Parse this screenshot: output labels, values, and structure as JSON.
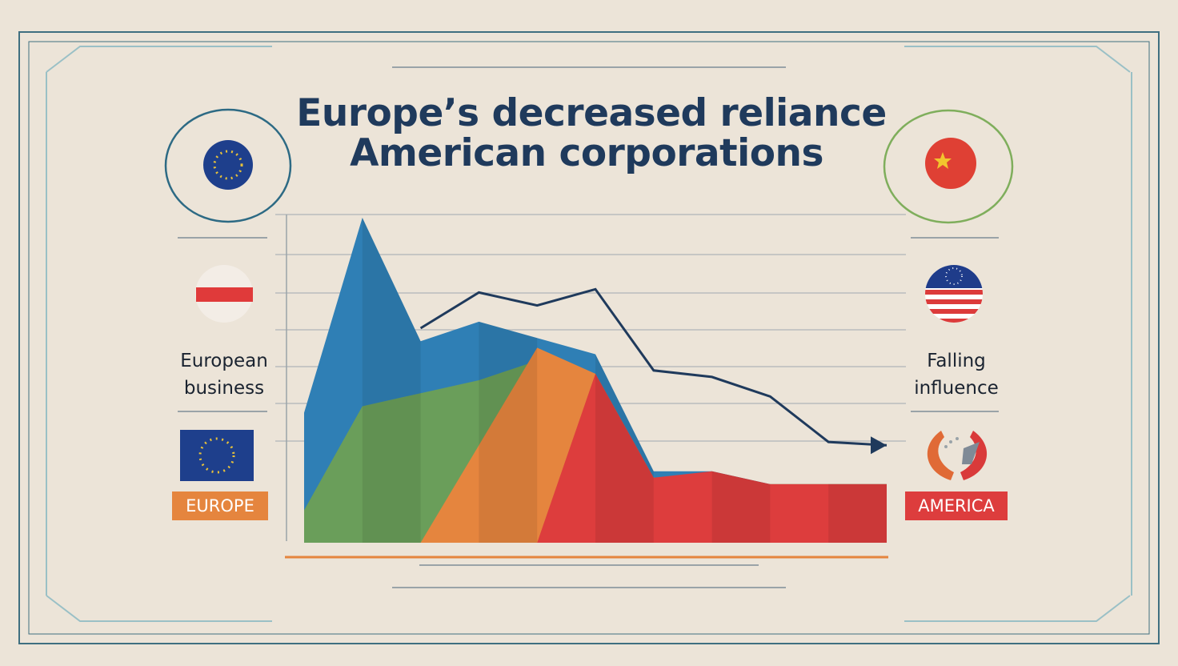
{
  "title": {
    "line1": "Europe’s decreased reliance",
    "line2": "American corporations"
  },
  "labels": {
    "left_line1": "European",
    "left_line2": "business",
    "right_line1": "Falling",
    "right_line2": "influence",
    "europe_tag": "EUROPE",
    "america_tag": "AMERICA"
  },
  "colors": {
    "background": "#ece4d8",
    "title": "#1f3a5c",
    "blue_area": "#2f7fb5",
    "green_area": "#6a9e5a",
    "orange_area": "#e5853e",
    "red_area": "#dd3d3d",
    "trend_line": "#1f3a5c",
    "frame": "#3f6f80"
  },
  "icons": {
    "top_left": "eu-flag-circle-icon",
    "top_right": "china-flag-circle-icon",
    "mid_left": "red-white-flag-circle-icon",
    "mid_right": "us-flag-circle-icon",
    "bottom_left": "eu-flag-icon",
    "bottom_right": "split-flag-icon"
  },
  "chart_data": {
    "type": "area",
    "title": "Europe’s decreased reliance American corporations",
    "xlabel": "",
    "ylabel": "",
    "grid": true,
    "legend": "none",
    "note": "Illustrative infographic with no axis scale; values are relative heights on a 0–100 scale.",
    "x": [
      0,
      1,
      2,
      3,
      4,
      5,
      6,
      7,
      8,
      9,
      10
    ],
    "series": [
      {
        "color": "#2f7fb5",
        "values": [
          40,
          100,
          62,
          68,
          63,
          58,
          22,
          22,
          18,
          18,
          18
        ]
      },
      {
        "color": "#6a9e5a",
        "values": [
          10,
          42,
          46,
          50,
          56,
          48,
          20,
          20,
          18,
          18,
          18
        ]
      },
      {
        "color": "#e5853e",
        "values": [
          0,
          0,
          0,
          30,
          60,
          52,
          20,
          20,
          18,
          18,
          18
        ]
      },
      {
        "color": "#dd3d3d",
        "values": [
          0,
          0,
          0,
          0,
          0,
          52,
          20,
          22,
          18,
          18,
          18
        ]
      },
      {
        "type": "line",
        "color": "#1f3a5c",
        "values": [
          null,
          null,
          66,
          77,
          73,
          78,
          53,
          51,
          45,
          31,
          30
        ]
      }
    ]
  }
}
